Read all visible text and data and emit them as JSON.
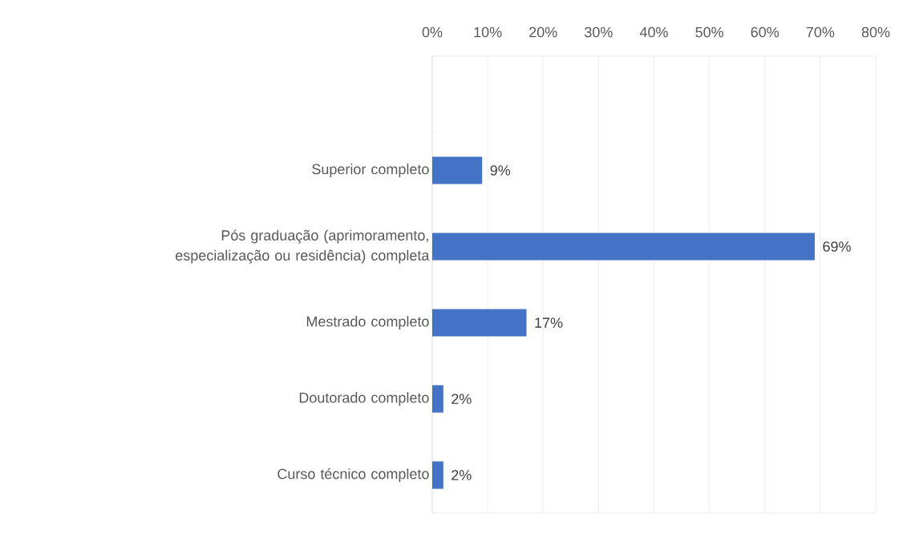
{
  "chart_data": {
    "type": "bar",
    "orientation": "horizontal",
    "color": "#4472c4",
    "categories": [
      null,
      "Superior completo",
      "Pós graduação (aprimoramento, especialização ou residência) completa",
      "Mestrado completo",
      "Doutorado completo",
      "Curso técnico completo"
    ],
    "values": [
      null,
      9,
      69,
      17,
      2,
      2
    ],
    "value_labels": [
      null,
      "9%",
      "69%",
      "17%",
      "2%",
      "2%"
    ],
    "xlim": [
      0,
      80
    ],
    "xticks": [
      {
        "value": 0,
        "label": "0%"
      },
      {
        "value": 10,
        "label": "10%"
      },
      {
        "value": 20,
        "label": "20%"
      },
      {
        "value": 30,
        "label": "30%"
      },
      {
        "value": 40,
        "label": "40%"
      },
      {
        "value": 50,
        "label": "50%"
      },
      {
        "value": 60,
        "label": "60%"
      },
      {
        "value": 70,
        "label": "70%"
      },
      {
        "value": 80,
        "label": "80%"
      }
    ],
    "grid": "x"
  }
}
